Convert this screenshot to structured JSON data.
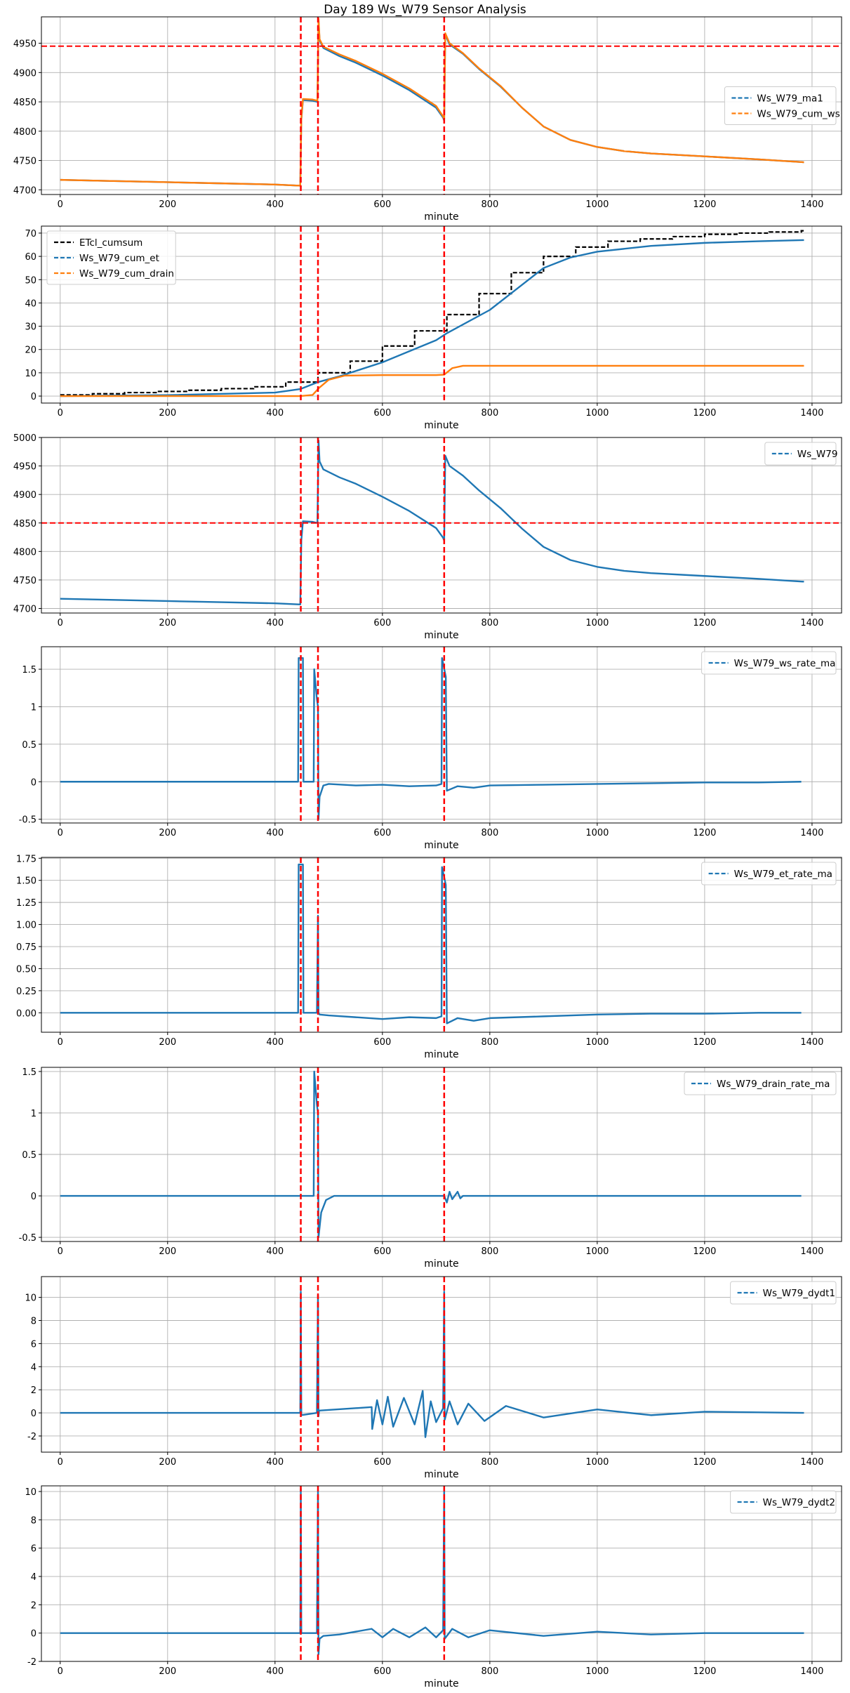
{
  "title": "Day 189 Ws_W79 Sensor Analysis",
  "colors": {
    "blue": "#1f77b4",
    "orange": "#ff7f0e",
    "black": "#000000",
    "red": "#ff0000",
    "grid": "#b0b0b0"
  },
  "chart_data": [
    {
      "type": "line",
      "id": "p1",
      "xlabel": "minute",
      "xlim": [
        -35,
        1455
      ],
      "ylim": [
        4692,
        4995
      ],
      "xticks": [
        0,
        200,
        400,
        600,
        800,
        1000,
        1200,
        1400
      ],
      "yticks": [
        4700,
        4750,
        4800,
        4850,
        4900,
        4950
      ],
      "vlines": [
        448,
        480,
        715
      ],
      "hline": 4945,
      "legend": {
        "position": "center-right",
        "entries": [
          "Ws_W79_ma1",
          "Ws_W79_cum_ws"
        ]
      },
      "series": [
        {
          "name": "Ws_W79_ma1",
          "color": "blue",
          "x": [
            0,
            100,
            200,
            300,
            400,
            447,
            449,
            452,
            470,
            479,
            481,
            483,
            490,
            520,
            550,
            600,
            650,
            700,
            713,
            715,
            717,
            725,
            750,
            780,
            820,
            860,
            900,
            950,
            1000,
            1050,
            1100,
            1200,
            1300,
            1385
          ],
          "y": [
            4717,
            4715,
            4713,
            4711,
            4709,
            4707,
            4820,
            4853,
            4852,
            4850,
            4990,
            4955,
            4942,
            4928,
            4917,
            4895,
            4870,
            4840,
            4823,
            4818,
            4965,
            4948,
            4932,
            4906,
            4876,
            4840,
            4808,
            4785,
            4773,
            4766,
            4762,
            4757,
            4752,
            4747
          ]
        },
        {
          "name": "Ws_W79_cum_ws",
          "color": "orange",
          "x": [
            0,
            100,
            200,
            300,
            400,
            447,
            449,
            452,
            470,
            479,
            481,
            483,
            490,
            520,
            550,
            600,
            650,
            700,
            713,
            715,
            717,
            725,
            750,
            780,
            820,
            860,
            900,
            950,
            1000,
            1050,
            1100,
            1200,
            1300,
            1385
          ],
          "y": [
            4717,
            4715,
            4713,
            4711,
            4709,
            4707,
            4822,
            4855,
            4854,
            4852,
            4992,
            4957,
            4944,
            4931,
            4920,
            4898,
            4873,
            4843,
            4825,
            4820,
            4967,
            4950,
            4933,
            4907,
            4877,
            4840,
            4808,
            4785,
            4773,
            4766,
            4762,
            4757,
            4752,
            4747
          ]
        }
      ]
    },
    {
      "type": "line",
      "id": "p2",
      "xlabel": "minute",
      "xlim": [
        -35,
        1455
      ],
      "ylim": [
        -3,
        73
      ],
      "xticks": [
        0,
        200,
        400,
        600,
        800,
        1000,
        1200,
        1400
      ],
      "yticks": [
        0,
        10,
        20,
        30,
        40,
        50,
        60,
        70
      ],
      "vlines": [
        448,
        480,
        715
      ],
      "hline": null,
      "legend": {
        "position": "top-left",
        "entries": [
          "ETcl_cumsum",
          "Ws_W79_cum_et",
          "Ws_W79_cum_drain"
        ]
      },
      "steps": [
        {
          "name": "ETcl_cumsum",
          "color": "black",
          "x": [
            0,
            60,
            120,
            180,
            240,
            300,
            360,
            420,
            480,
            540,
            600,
            660,
            720,
            780,
            840,
            900,
            960,
            1020,
            1080,
            1140,
            1200,
            1260,
            1320,
            1380,
            1385
          ],
          "y": [
            0.5,
            1.0,
            1.5,
            2.0,
            2.5,
            3.2,
            4.0,
            6.0,
            10.0,
            15.0,
            21.5,
            28.0,
            35.0,
            44.0,
            53.0,
            60.0,
            64.0,
            66.5,
            67.5,
            68.5,
            69.5,
            70.0,
            70.5,
            71.0,
            71.0
          ]
        }
      ],
      "series": [
        {
          "name": "Ws_W79_cum_et",
          "color": "blue",
          "x": [
            0,
            200,
            400,
            447,
            480,
            520,
            600,
            700,
            720,
            800,
            850,
            900,
            950,
            1000,
            1100,
            1200,
            1300,
            1385
          ],
          "y": [
            0,
            0.4,
            1.5,
            3.0,
            6.0,
            8.5,
            14.5,
            24.0,
            27.0,
            37.0,
            46.0,
            55.0,
            59.5,
            62.0,
            64.5,
            65.8,
            66.5,
            67.0
          ]
        },
        {
          "name": "Ws_W79_cum_drain",
          "color": "orange",
          "x": [
            0,
            447,
            470,
            482,
            500,
            530,
            600,
            700,
            715,
            730,
            750,
            800,
            1000,
            1385
          ],
          "y": [
            0,
            0,
            0.5,
            3.5,
            7.0,
            8.8,
            9.0,
            9.0,
            9.2,
            12.0,
            13.0,
            13.0,
            13.0,
            13.0
          ]
        }
      ]
    },
    {
      "type": "line",
      "id": "p3",
      "xlabel": "minute",
      "xlim": [
        -35,
        1455
      ],
      "ylim": [
        4692,
        5000
      ],
      "xticks": [
        0,
        200,
        400,
        600,
        800,
        1000,
        1200,
        1400
      ],
      "yticks": [
        4700,
        4750,
        4800,
        4850,
        4900,
        4950,
        5000
      ],
      "vlines": [
        448,
        480,
        715
      ],
      "hline": 4850,
      "legend": {
        "position": "top-right",
        "entries": [
          "Ws_W79"
        ]
      },
      "series": [
        {
          "name": "Ws_W79",
          "color": "blue",
          "x": [
            0,
            100,
            200,
            300,
            400,
            447,
            449,
            452,
            470,
            479,
            481,
            483,
            490,
            520,
            550,
            600,
            650,
            700,
            713,
            715,
            717,
            725,
            750,
            780,
            820,
            860,
            900,
            950,
            1000,
            1050,
            1100,
            1200,
            1300,
            1385
          ],
          "y": [
            4717,
            4715,
            4713,
            4711,
            4709,
            4707,
            4820,
            4853,
            4852,
            4850,
            4995,
            4958,
            4944,
            4930,
            4919,
            4896,
            4871,
            4841,
            4824,
            4819,
            4968,
            4950,
            4933,
            4907,
            4876,
            4840,
            4808,
            4785,
            4773,
            4766,
            4762,
            4757,
            4752,
            4747
          ]
        }
      ]
    },
    {
      "type": "line",
      "id": "p4",
      "xlabel": "minute",
      "xlim": [
        -35,
        1455
      ],
      "ylim": [
        -0.55,
        1.8
      ],
      "xticks": [
        0,
        200,
        400,
        600,
        800,
        1000,
        1200,
        1400
      ],
      "yticks": [
        -0.5,
        0.0,
        0.5,
        1.0,
        1.5
      ],
      "vlines": [
        448,
        480,
        715
      ],
      "hline": null,
      "legend": {
        "position": "top-right",
        "entries": [
          "Ws_W79_ws_rate_ma"
        ]
      },
      "series": [
        {
          "name": "Ws_W79_ws_rate_ma",
          "color": "blue",
          "x": [
            0,
            200,
            400,
            443,
            444,
            452,
            453,
            472,
            473,
            478,
            480,
            481,
            483,
            490,
            500,
            550,
            600,
            650,
            700,
            710,
            711,
            718,
            720,
            740,
            770,
            800,
            900,
            1000,
            1100,
            1200,
            1300,
            1380
          ],
          "y": [
            0,
            0,
            0,
            0,
            1.65,
            1.65,
            0,
            0,
            1.5,
            1.1,
            1.0,
            -0.5,
            -0.2,
            -0.05,
            -0.03,
            -0.05,
            -0.04,
            -0.06,
            -0.05,
            -0.03,
            1.65,
            1.4,
            -0.12,
            -0.06,
            -0.08,
            -0.05,
            -0.04,
            -0.03,
            -0.02,
            -0.01,
            -0.01,
            0
          ]
        }
      ]
    },
    {
      "type": "line",
      "id": "p5",
      "xlabel": "minute",
      "xlim": [
        -35,
        1455
      ],
      "ylim": [
        -0.22,
        1.76
      ],
      "xticks": [
        0,
        200,
        400,
        600,
        800,
        1000,
        1200,
        1400
      ],
      "yticks": [
        0.0,
        0.25,
        0.5,
        0.75,
        1.0,
        1.25,
        1.5,
        1.75
      ],
      "yticklabels": [
        "0.00",
        "0.25",
        "0.50",
        "0.75",
        "1.00",
        "1.25",
        "1.50",
        "1.75"
      ],
      "vlines": [
        448,
        480,
        715
      ],
      "hline": null,
      "legend": {
        "position": "top-right",
        "entries": [
          "Ws_W79_et_rate_ma"
        ]
      },
      "series": [
        {
          "name": "Ws_W79_et_rate_ma",
          "color": "blue",
          "x": [
            0,
            200,
            400,
            443,
            444,
            452,
            453,
            478,
            480,
            481,
            483,
            500,
            550,
            600,
            650,
            700,
            710,
            711,
            718,
            720,
            740,
            770,
            800,
            900,
            1000,
            1100,
            1200,
            1300,
            1380
          ],
          "y": [
            0,
            0,
            0,
            0,
            1.68,
            1.68,
            0,
            0,
            1.1,
            0,
            -0.02,
            -0.03,
            -0.05,
            -0.07,
            -0.05,
            -0.06,
            -0.04,
            1.65,
            1.45,
            -0.12,
            -0.06,
            -0.09,
            -0.06,
            -0.04,
            -0.02,
            -0.01,
            -0.01,
            0,
            0
          ]
        }
      ]
    },
    {
      "type": "line",
      "id": "p6",
      "xlabel": "minute",
      "xlim": [
        -35,
        1455
      ],
      "ylim": [
        -0.55,
        1.55
      ],
      "xticks": [
        0,
        200,
        400,
        600,
        800,
        1000,
        1200,
        1400
      ],
      "yticks": [
        -0.5,
        0.0,
        0.5,
        1.0,
        1.5
      ],
      "vlines": [
        448,
        480,
        715
      ],
      "hline": null,
      "legend": {
        "position": "top-right",
        "entries": [
          "Ws_W79_drain_rate_ma"
        ]
      },
      "series": [
        {
          "name": "Ws_W79_drain_rate_ma",
          "color": "blue",
          "x": [
            0,
            200,
            400,
            448,
            460,
            472,
            473,
            478,
            480,
            481,
            486,
            495,
            510,
            520,
            700,
            715,
            720,
            725,
            730,
            740,
            745,
            750,
            760,
            1000,
            1380
          ],
          "y": [
            0,
            0,
            0,
            0,
            0,
            0,
            1.5,
            1.1,
            1.0,
            -0.5,
            -0.2,
            -0.05,
            0,
            0,
            0,
            0,
            -0.08,
            0.05,
            -0.04,
            0.05,
            -0.03,
            0,
            0,
            0,
            0
          ]
        }
      ]
    },
    {
      "type": "line",
      "id": "p7",
      "xlabel": "minute",
      "xlim": [
        -35,
        1455
      ],
      "ylim": [
        -3.4,
        11.8
      ],
      "xticks": [
        0,
        200,
        400,
        600,
        800,
        1000,
        1200,
        1400
      ],
      "yticks": [
        -2,
        0,
        2,
        4,
        6,
        8,
        10
      ],
      "vlines": [
        448,
        480,
        715
      ],
      "hline": null,
      "legend": {
        "position": "top-right",
        "entries": [
          "Ws_W79_dydt1"
        ]
      },
      "series": [
        {
          "name": "Ws_W79_dydt1",
          "color": "blue",
          "x": [
            0,
            440,
            447,
            448,
            449,
            478,
            480,
            481,
            482,
            580,
            581,
            590,
            600,
            610,
            620,
            640,
            660,
            675,
            680,
            690,
            700,
            713,
            715,
            716,
            725,
            740,
            760,
            790,
            830,
            900,
            1000,
            1100,
            1200,
            1385
          ],
          "y": [
            0,
            0,
            0,
            10.5,
            -0.2,
            0,
            10.2,
            -0.3,
            0.2,
            0.5,
            -1.4,
            1.1,
            -1.0,
            1.4,
            -1.2,
            1.3,
            -1.0,
            1.9,
            -2.1,
            1.0,
            -0.8,
            0.4,
            10.5,
            -0.6,
            1.0,
            -1.0,
            0.8,
            -0.7,
            0.6,
            -0.4,
            0.3,
            -0.2,
            0.1,
            0
          ]
        }
      ]
    },
    {
      "type": "line",
      "id": "p8",
      "xlabel": "minute",
      "xlim": [
        -35,
        1455
      ],
      "ylim": [
        -2,
        10.4
      ],
      "xticks": [
        0,
        200,
        400,
        600,
        800,
        1000,
        1200,
        1400
      ],
      "yticks": [
        -2,
        0,
        2,
        4,
        6,
        8,
        10
      ],
      "vlines": [
        448,
        480,
        715
      ],
      "hline": null,
      "legend": {
        "position": "top-right",
        "entries": [
          "Ws_W79_dydt2"
        ]
      },
      "series": [
        {
          "name": "Ws_W79_dydt2",
          "color": "blue",
          "x": [
            0,
            440,
            447,
            448,
            449,
            478,
            480,
            481,
            483,
            490,
            520,
            580,
            600,
            620,
            650,
            680,
            700,
            713,
            715,
            716,
            730,
            760,
            800,
            900,
            1000,
            1100,
            1200,
            1385
          ],
          "y": [
            0,
            0,
            0,
            10.2,
            0,
            0,
            10.0,
            -1.5,
            -0.4,
            -0.2,
            -0.1,
            0.3,
            -0.3,
            0.3,
            -0.3,
            0.4,
            -0.3,
            0.2,
            10.2,
            -0.4,
            0.3,
            -0.3,
            0.2,
            -0.2,
            0.1,
            -0.1,
            0,
            0
          ]
        }
      ]
    }
  ]
}
